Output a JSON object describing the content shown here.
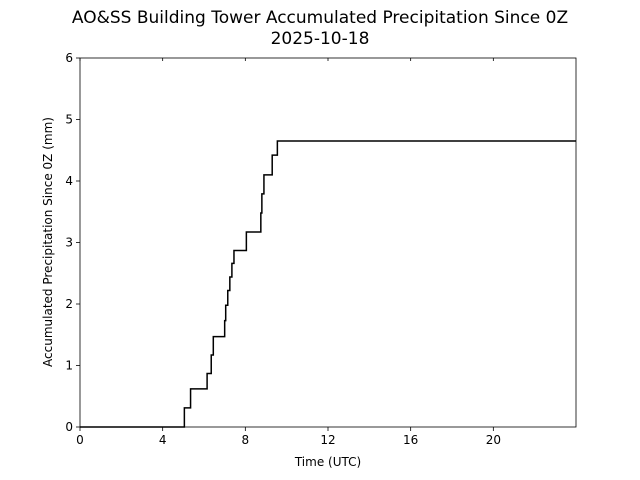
{
  "chart_data": {
    "type": "line",
    "title": "AO&SS Building Tower Accumulated Precipitation Since 0Z",
    "subtitle": "2025-10-18",
    "xlabel": "Time (UTC)",
    "ylabel": "Accumulated Precipitation Since 0Z (mm)",
    "xlim": [
      0,
      24
    ],
    "ylim": [
      0,
      6
    ],
    "xticks": [
      0,
      4,
      8,
      12,
      16,
      20
    ],
    "yticks": [
      0,
      1,
      2,
      3,
      4,
      5,
      6
    ],
    "grid": false,
    "line_color": "#000000",
    "step": true,
    "series": [
      {
        "x": [
          0,
          5.05,
          5.35,
          6.15,
          6.35,
          6.45,
          7.0,
          7.05,
          7.15,
          7.25,
          7.35,
          7.45,
          7.55,
          8.05,
          8.75,
          8.8,
          8.9,
          9.3,
          9.55,
          24
        ],
        "y": [
          0,
          0.31,
          0.62,
          0.87,
          1.17,
          1.47,
          1.73,
          1.98,
          2.22,
          2.44,
          2.66,
          2.87,
          2.87,
          3.17,
          3.48,
          3.79,
          4.1,
          4.42,
          4.65,
          4.65
        ]
      }
    ]
  }
}
